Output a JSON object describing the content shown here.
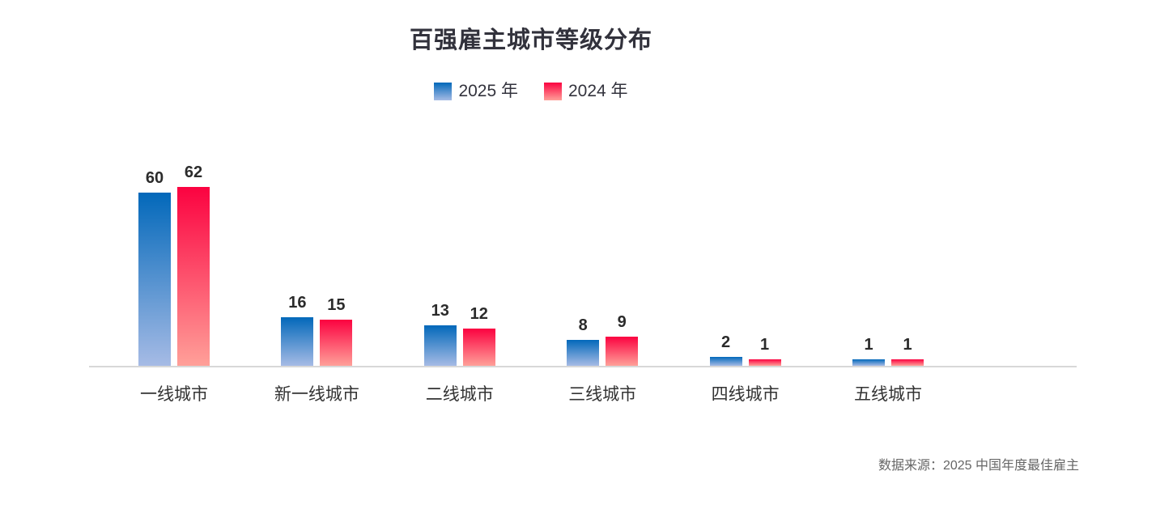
{
  "title": "百强雇主城市等级分布",
  "source_note": "数据来源：2025 中国年度最佳雇主",
  "legend": [
    {
      "label": "2025 年",
      "gradient_top": "#0268ba",
      "gradient_bottom": "#a6bbe5"
    },
    {
      "label": "2024 年",
      "gradient_top": "#fb0240",
      "gradient_bottom": "#ffa099"
    }
  ],
  "chart_data": {
    "type": "bar",
    "title": "百强雇主城市等级分布",
    "categories": [
      "一线城市",
      "新一线城市",
      "二线城市",
      "三线城市",
      "四线城市",
      "五线城市"
    ],
    "series": [
      {
        "name": "2025 年",
        "values": [
          60,
          16,
          13,
          8,
          2,
          1
        ],
        "gradient_top": "#0268ba",
        "gradient_bottom": "#a6bbe5"
      },
      {
        "name": "2024 年",
        "values": [
          62,
          15,
          12,
          9,
          1,
          1
        ],
        "gradient_top": "#fb0240",
        "gradient_bottom": "#ffa099"
      }
    ],
    "xlabel": "",
    "ylabel": "",
    "ylim": [
      0,
      70
    ],
    "grid": false,
    "legend_position": "top",
    "value_labels": true,
    "axis_color": "#d8d8d8"
  },
  "colors": {
    "title_text": "#32323c",
    "value_label_text": "#2b2b2b",
    "category_label_text": "#333333",
    "source_text": "#666666",
    "axis_line": "#d8d8d8",
    "background": "#ffffff"
  }
}
